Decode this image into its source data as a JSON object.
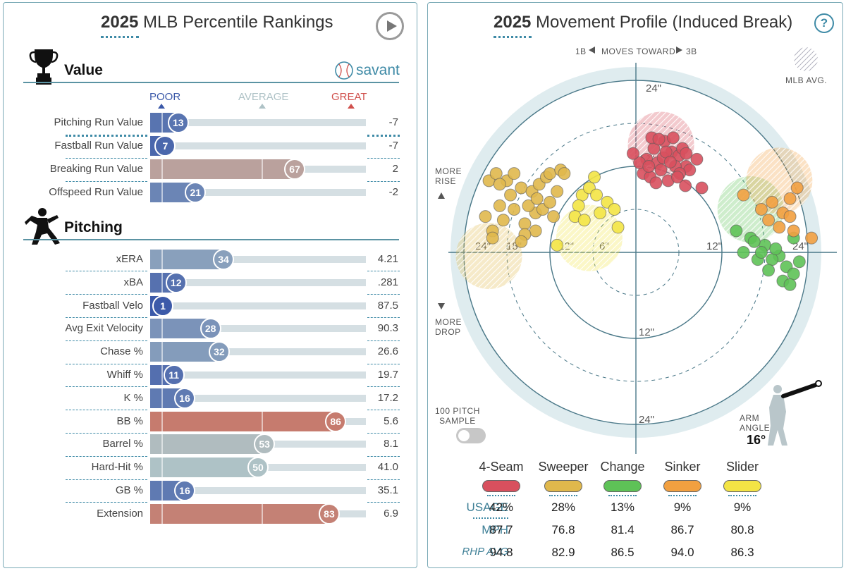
{
  "left_panel": {
    "title_bold": "2025",
    "title_rest": " MLB Percentile Rankings",
    "brand": "savant",
    "scale": {
      "poor": "POOR",
      "average": "AVERAGE",
      "great": "GREAT"
    },
    "colors": {
      "blue": "#3a58a8",
      "red": "#d0604c",
      "neutral": "#aec2c6",
      "track": "#d5dfe3",
      "accent": "#3e8aa6"
    },
    "sections": [
      {
        "title": "Value",
        "icon": "trophy-icon",
        "rows": [
          {
            "label": "Pitching Run Value",
            "pct": 13,
            "value": "-7"
          },
          {
            "label": "Fastball Run Value",
            "pct": 7,
            "value": "-7"
          },
          {
            "label": "Breaking Run Value",
            "pct": 67,
            "value": "2"
          },
          {
            "label": "Offspeed Run Value",
            "pct": 21,
            "value": "-2"
          }
        ]
      },
      {
        "title": "Pitching",
        "icon": "pitcher-icon",
        "rows": [
          {
            "label": "xERA",
            "pct": 34,
            "value": "4.21"
          },
          {
            "label": "xBA",
            "pct": 12,
            "value": ".281"
          },
          {
            "label": "Fastball Velo",
            "pct": 1,
            "value": "87.5"
          },
          {
            "label": "Avg Exit Velocity",
            "pct": 28,
            "value": "90.3"
          },
          {
            "label": "Chase %",
            "pct": 32,
            "value": "26.6"
          },
          {
            "label": "Whiff %",
            "pct": 11,
            "value": "19.7"
          },
          {
            "label": "K %",
            "pct": 16,
            "value": "17.2"
          },
          {
            "label": "BB %",
            "pct": 86,
            "value": "5.6"
          },
          {
            "label": "Barrel %",
            "pct": 53,
            "value": "8.1"
          },
          {
            "label": "Hard-Hit %",
            "pct": 50,
            "value": "41.0"
          },
          {
            "label": "GB %",
            "pct": 16,
            "value": "35.1"
          },
          {
            "label": "Extension",
            "pct": 83,
            "value": "6.9"
          }
        ]
      }
    ]
  },
  "right_panel": {
    "title_bold": "2025",
    "title_rest": " Movement Profile (Induced Break)",
    "help": "?",
    "direction": {
      "left": "1B",
      "middle": "MOVES TOWARD",
      "right": "3B"
    },
    "legend_avg": "MLB AVG.",
    "more_rise": [
      "MORE",
      "RISE"
    ],
    "more_drop": [
      "MORE",
      "DROP"
    ],
    "sample_label": [
      "100 PITCH",
      "SAMPLE"
    ],
    "arm_angle_label": [
      "ARM",
      "ANGLE"
    ],
    "arm_angle_value": "16°",
    "row_labels": {
      "usage": "USAGE",
      "mph": "MPH",
      "rhp_avg": "RHP AVG"
    }
  },
  "chart_data": {
    "type": "scatter",
    "title": "2025 Movement Profile (Induced Break)",
    "xlim": [
      -24,
      24
    ],
    "ylim": [
      -24,
      24
    ],
    "ring_labels": [
      "6\"",
      "12\"",
      "18\"",
      "24\""
    ],
    "pitches": [
      {
        "name": "4-Seam",
        "color": "#d8505e",
        "usage": "42%",
        "mph": "87.7",
        "rhp_avg": "94.8",
        "avg": [
          3.5,
          15
        ],
        "points": [
          [
            1.5,
            13
          ],
          [
            2.5,
            14.5
          ],
          [
            3,
            12.5
          ],
          [
            4,
            15.5
          ],
          [
            5,
            14
          ],
          [
            6,
            13.5
          ],
          [
            7,
            12
          ],
          [
            1,
            11
          ],
          [
            2,
            10.5
          ],
          [
            3.5,
            11.5
          ],
          [
            5.5,
            12
          ],
          [
            6.5,
            14.5
          ],
          [
            7.5,
            11.5
          ],
          [
            4.5,
            10
          ],
          [
            0.5,
            12.5
          ],
          [
            2.2,
            16
          ],
          [
            3.8,
            13.2
          ],
          [
            5.2,
            16
          ],
          [
            6.1,
            11
          ],
          [
            2.8,
            9.7
          ],
          [
            8.5,
            13
          ],
          [
            1.8,
            12
          ],
          [
            4.2,
            14
          ],
          [
            5.8,
            10.5
          ],
          [
            3.2,
            15.8
          ],
          [
            7.0,
            13.8
          ],
          [
            -0.4,
            13.8
          ],
          [
            4.8,
            12.6
          ],
          [
            6.9,
            9.3
          ],
          [
            9.2,
            9.0
          ]
        ]
      },
      {
        "name": "Sweeper",
        "color": "#e0b84c",
        "usage": "28%",
        "mph": "76.8",
        "rhp_avg": "82.9",
        "avg": [
          -20.5,
          -0.5
        ],
        "points": [
          [
            -21,
            5
          ],
          [
            -20,
            3
          ],
          [
            -19,
            6.5
          ],
          [
            -17,
            6
          ],
          [
            -15.5,
            4
          ],
          [
            -14,
            5.5
          ],
          [
            -13,
            6
          ],
          [
            -12,
            7
          ],
          [
            -11.5,
            5
          ],
          [
            -20.5,
            10
          ],
          [
            -19.5,
            11
          ],
          [
            -18,
            10
          ],
          [
            -17,
            11
          ],
          [
            -16,
            9
          ],
          [
            -14.5,
            8.5
          ],
          [
            -13.5,
            9.5
          ],
          [
            -12.5,
            10.5
          ],
          [
            -12,
            11
          ],
          [
            -10.5,
            11.5
          ],
          [
            -11,
            8.5
          ],
          [
            -14,
            3
          ],
          [
            -15.5,
            2.5
          ],
          [
            -16,
            1.5
          ],
          [
            -18.5,
            4.5
          ],
          [
            -20,
            2
          ],
          [
            -19,
            9.5
          ],
          [
            -17.5,
            8
          ],
          [
            -15,
            6.5
          ],
          [
            -13.8,
            7.5
          ],
          [
            -10,
            11
          ]
        ]
      },
      {
        "name": "Change",
        "color": "#5ec257",
        "usage": "13%",
        "mph": "81.4",
        "rhp_avg": "86.5",
        "avg": [
          16,
          6
        ],
        "points": [
          [
            14,
            3
          ],
          [
            16,
            2
          ],
          [
            18,
            1
          ],
          [
            20,
            -0.5
          ],
          [
            21,
            -2
          ],
          [
            19,
            -1
          ],
          [
            17,
            -1
          ],
          [
            15,
            0
          ],
          [
            22,
            2
          ],
          [
            18.5,
            -2.5
          ],
          [
            20.5,
            -4
          ],
          [
            22,
            -3
          ],
          [
            21.5,
            -4.5
          ],
          [
            19.5,
            0.5
          ],
          [
            16.5,
            1.5
          ],
          [
            17.5,
            0
          ],
          [
            22.8,
            -1.3
          ]
        ]
      },
      {
        "name": "Sinker",
        "color": "#f2a040",
        "usage": "9%",
        "mph": "86.7",
        "rhp_avg": "94.0",
        "avg": [
          20,
          10
        ],
        "points": [
          [
            15,
            8
          ],
          [
            17.5,
            6
          ],
          [
            18.5,
            4.5
          ],
          [
            20.5,
            5.5
          ],
          [
            21.5,
            5
          ],
          [
            22,
            3
          ],
          [
            24.5,
            2
          ],
          [
            20,
            3.5
          ],
          [
            19,
            7
          ],
          [
            22.5,
            9
          ],
          [
            21.5,
            7.5
          ]
        ]
      },
      {
        "name": "Slider",
        "color": "#f3e445",
        "usage": "9%",
        "mph": "80.8",
        "rhp_avg": "86.3",
        "avg": [
          -6.5,
          2
        ],
        "points": [
          [
            -7.5,
            8
          ],
          [
            -6.5,
            9
          ],
          [
            -5.5,
            8
          ],
          [
            -8,
            6.5
          ],
          [
            -5,
            5.5
          ],
          [
            -4,
            7
          ],
          [
            -3,
            6
          ],
          [
            -8.5,
            5
          ],
          [
            -11,
            1
          ],
          [
            -7.2,
            4.5
          ],
          [
            -2.5,
            3.5
          ],
          [
            -5.8,
            10.5
          ]
        ]
      }
    ]
  }
}
